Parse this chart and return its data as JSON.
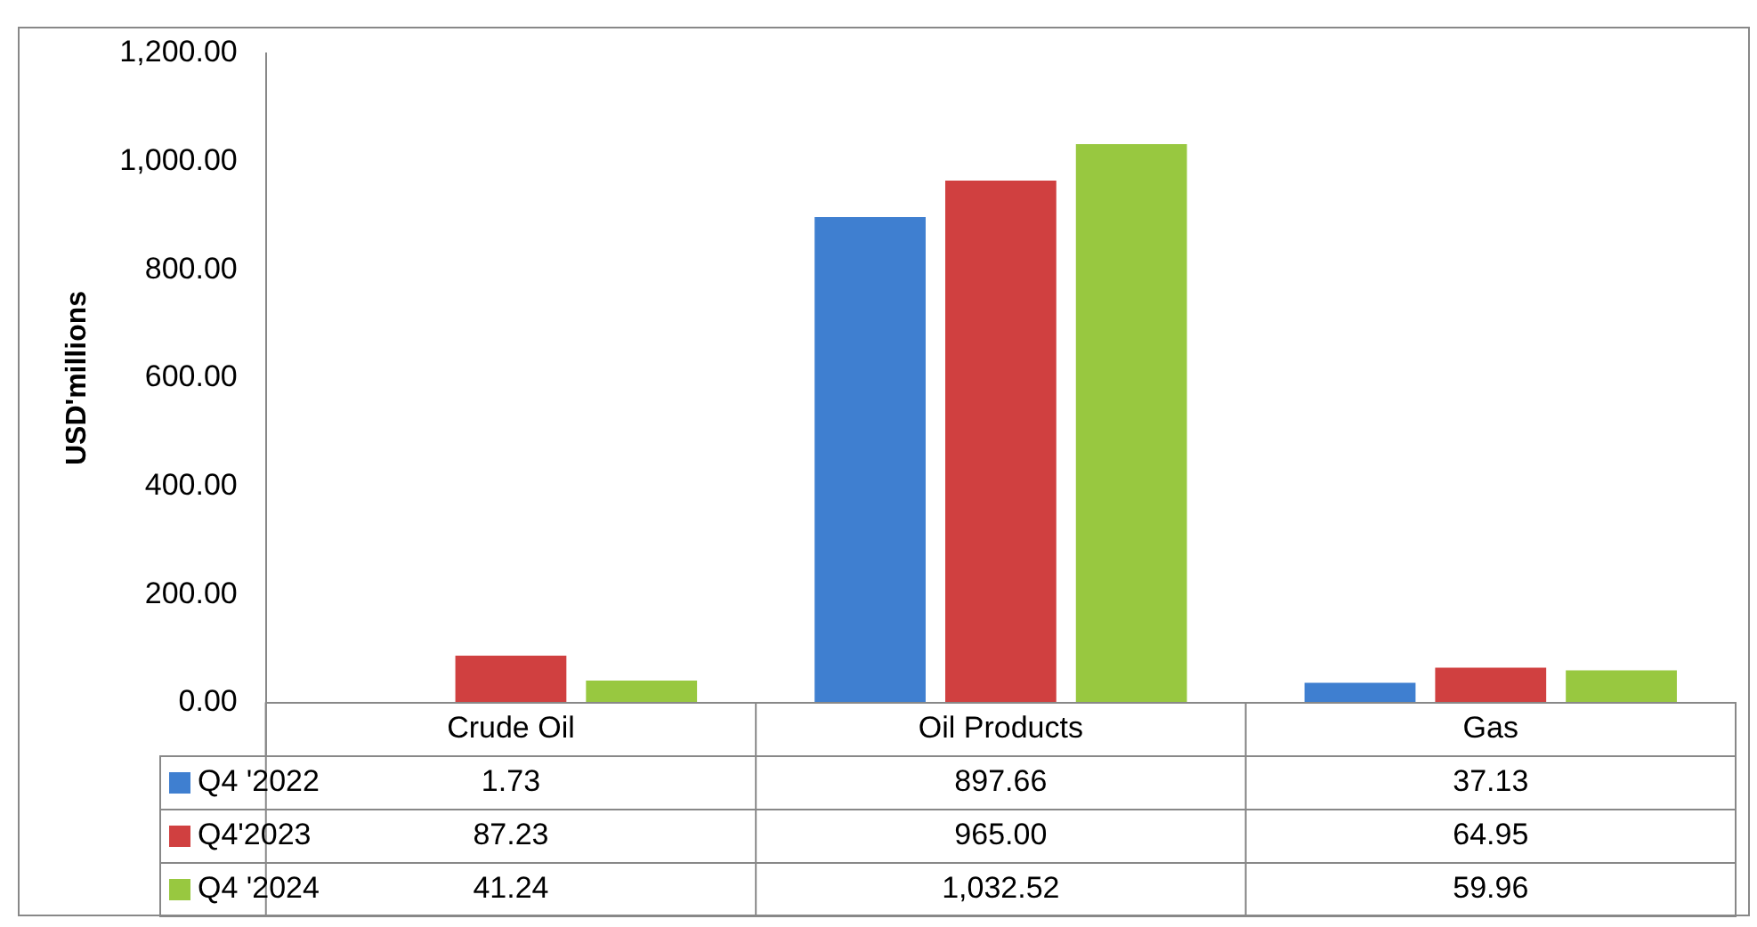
{
  "chart_data": {
    "type": "bar",
    "ylabel": "USD'millions",
    "categories": [
      "Crude Oil",
      "Oil Products",
      "Gas"
    ],
    "series": [
      {
        "name": "Q4 '2022",
        "color": "#3f7fd0",
        "values": [
          1.73,
          897.66,
          37.13
        ],
        "value_labels": [
          "1.73",
          "897.66",
          "37.13"
        ]
      },
      {
        "name": "Q4'2023",
        "color": "#d04040",
        "values": [
          87.23,
          965.0,
          64.95
        ],
        "value_labels": [
          "87.23",
          "965.00",
          "64.95"
        ]
      },
      {
        "name": "Q4 '2024",
        "color": "#98c840",
        "values": [
          41.24,
          1032.52,
          59.96
        ],
        "value_labels": [
          "41.24",
          "1,032.52",
          "59.96"
        ]
      }
    ],
    "ylim": [
      0,
      1200
    ],
    "yticks": [
      {
        "value": 0,
        "label": "0.00"
      },
      {
        "value": 200,
        "label": "200.00"
      },
      {
        "value": 400,
        "label": "400.00"
      },
      {
        "value": 600,
        "label": "600.00"
      },
      {
        "value": 800,
        "label": "800.00"
      },
      {
        "value": 1000,
        "label": "1,000.00"
      },
      {
        "value": 1200,
        "label": "1,200.00"
      }
    ],
    "grid": false,
    "legend": "bottom"
  }
}
